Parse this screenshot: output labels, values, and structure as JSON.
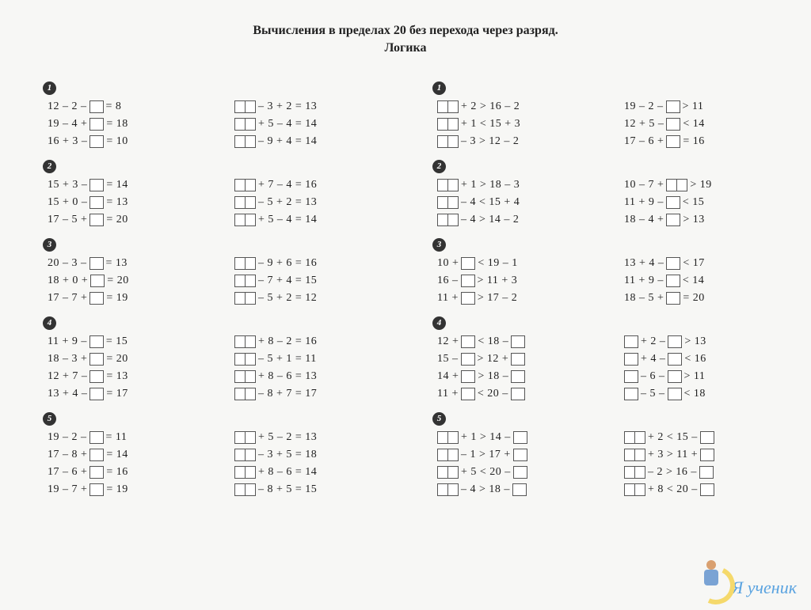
{
  "title_line1": "Вычисления в пределах 20 без перехода через разряд.",
  "title_line2": "Логика",
  "watermark_text": "Я ученик",
  "left": {
    "colA": [
      {
        "n": 1,
        "rows": [
          [
            {
              "t": "12 – 2 –"
            },
            {
              "b": 1
            },
            {
              "t": "= 8"
            }
          ],
          [
            {
              "t": "19 – 4 +"
            },
            {
              "b": 1
            },
            {
              "t": "= 18"
            }
          ],
          [
            {
              "t": "16 + 3 –"
            },
            {
              "b": 1
            },
            {
              "t": "= 10"
            }
          ]
        ]
      },
      {
        "n": 2,
        "rows": [
          [
            {
              "t": "15 + 3 –"
            },
            {
              "b": 1
            },
            {
              "t": "= 14"
            }
          ],
          [
            {
              "t": "15 + 0 –"
            },
            {
              "b": 1
            },
            {
              "t": "= 13"
            }
          ],
          [
            {
              "t": "17 – 5 +"
            },
            {
              "b": 1
            },
            {
              "t": "= 20"
            }
          ]
        ]
      },
      {
        "n": 3,
        "rows": [
          [
            {
              "t": "20 – 3 –"
            },
            {
              "b": 1
            },
            {
              "t": "= 13"
            }
          ],
          [
            {
              "t": "18 + 0 +"
            },
            {
              "b": 1
            },
            {
              "t": "= 20"
            }
          ],
          [
            {
              "t": "17 – 7 +"
            },
            {
              "b": 1
            },
            {
              "t": "= 19"
            }
          ]
        ]
      },
      {
        "n": 4,
        "rows": [
          [
            {
              "t": "11 + 9 –"
            },
            {
              "b": 1
            },
            {
              "t": "= 15"
            }
          ],
          [
            {
              "t": "18 – 3 +"
            },
            {
              "b": 1
            },
            {
              "t": "= 20"
            }
          ],
          [
            {
              "t": "12 + 7 –"
            },
            {
              "b": 1
            },
            {
              "t": "= 13"
            }
          ],
          [
            {
              "t": "13 + 4 –"
            },
            {
              "b": 1
            },
            {
              "t": "= 17"
            }
          ]
        ]
      },
      {
        "n": 5,
        "rows": [
          [
            {
              "t": "19 – 2 –"
            },
            {
              "b": 1
            },
            {
              "t": "= 11"
            }
          ],
          [
            {
              "t": "17 – 8 +"
            },
            {
              "b": 1
            },
            {
              "t": "= 14"
            }
          ],
          [
            {
              "t": "17 – 6 +"
            },
            {
              "b": 1
            },
            {
              "t": "= 16"
            }
          ],
          [
            {
              "t": "19 – 7 +"
            },
            {
              "b": 1
            },
            {
              "t": "= 19"
            }
          ]
        ]
      }
    ],
    "colB": [
      {
        "rows": [
          [
            {
              "b": 2
            },
            {
              "t": "– 3 + 2 = 13"
            }
          ],
          [
            {
              "b": 2
            },
            {
              "t": "+ 5 – 4 = 14"
            }
          ],
          [
            {
              "b": 2
            },
            {
              "t": "– 9 + 4 = 14"
            }
          ]
        ]
      },
      {
        "rows": [
          [
            {
              "b": 2
            },
            {
              "t": "+ 7 – 4 = 16"
            }
          ],
          [
            {
              "b": 2
            },
            {
              "t": "– 5 + 2 = 13"
            }
          ],
          [
            {
              "b": 2
            },
            {
              "t": "+ 5 – 4 = 14"
            }
          ]
        ]
      },
      {
        "rows": [
          [
            {
              "b": 2
            },
            {
              "t": "– 9 + 6 = 16"
            }
          ],
          [
            {
              "b": 2
            },
            {
              "t": "– 7 + 4 = 15"
            }
          ],
          [
            {
              "b": 2
            },
            {
              "t": "– 5 + 2 = 12"
            }
          ]
        ]
      },
      {
        "rows": [
          [
            {
              "b": 2
            },
            {
              "t": "+ 8 – 2 = 16"
            }
          ],
          [
            {
              "b": 2
            },
            {
              "t": "– 5 + 1 = 11"
            }
          ],
          [
            {
              "b": 2
            },
            {
              "t": "+ 8 – 6 = 13"
            }
          ],
          [
            {
              "b": 2
            },
            {
              "t": "– 8 + 7 = 17"
            }
          ]
        ]
      },
      {
        "rows": [
          [
            {
              "b": 2
            },
            {
              "t": "+ 5 – 2 = 13"
            }
          ],
          [
            {
              "b": 2
            },
            {
              "t": "– 3 + 5 = 18"
            }
          ],
          [
            {
              "b": 2
            },
            {
              "t": "+ 8 – 6 = 14"
            }
          ],
          [
            {
              "b": 2
            },
            {
              "t": "– 8 + 5 = 15"
            }
          ]
        ]
      }
    ]
  },
  "right": {
    "colA": [
      {
        "n": 1,
        "rows": [
          [
            {
              "b": 2
            },
            {
              "t": "+ 2 > 16 – 2"
            }
          ],
          [
            {
              "b": 2
            },
            {
              "t": "+ 1 < 15 + 3"
            }
          ],
          [
            {
              "b": 2
            },
            {
              "t": "– 3 > 12 – 2"
            }
          ]
        ]
      },
      {
        "n": 2,
        "rows": [
          [
            {
              "b": 2
            },
            {
              "t": "+ 1 > 18 – 3"
            }
          ],
          [
            {
              "b": 2
            },
            {
              "t": "– 4 < 15 + 4"
            }
          ],
          [
            {
              "b": 2
            },
            {
              "t": "– 4 > 14 – 2"
            }
          ]
        ]
      },
      {
        "n": 3,
        "rows": [
          [
            {
              "t": "10 +"
            },
            {
              "b": 1
            },
            {
              "t": "< 19 – 1"
            }
          ],
          [
            {
              "t": "16 –"
            },
            {
              "b": 1
            },
            {
              "t": "> 11 + 3"
            }
          ],
          [
            {
              "t": "11 +"
            },
            {
              "b": 1
            },
            {
              "t": "> 17 – 2"
            }
          ]
        ]
      },
      {
        "n": 4,
        "rows": [
          [
            {
              "t": "12 +"
            },
            {
              "b": 1
            },
            {
              "t": "< 18 –"
            },
            {
              "b": 1
            }
          ],
          [
            {
              "t": "15 –"
            },
            {
              "b": 1
            },
            {
              "t": "> 12 +"
            },
            {
              "b": 1
            }
          ],
          [
            {
              "t": "14 +"
            },
            {
              "b": 1
            },
            {
              "t": "> 18 –"
            },
            {
              "b": 1
            }
          ],
          [
            {
              "t": "11 +"
            },
            {
              "b": 1
            },
            {
              "t": "< 20 –"
            },
            {
              "b": 1
            }
          ]
        ]
      },
      {
        "n": 5,
        "rows": [
          [
            {
              "b": 2
            },
            {
              "t": "+ 1 > 14 –"
            },
            {
              "b": 1
            }
          ],
          [
            {
              "b": 2
            },
            {
              "t": "– 1 > 17 +"
            },
            {
              "b": 1
            }
          ],
          [
            {
              "b": 2
            },
            {
              "t": "+ 5 < 20 –"
            },
            {
              "b": 1
            }
          ],
          [
            {
              "b": 2
            },
            {
              "t": "– 4 > 18 –"
            },
            {
              "b": 1
            }
          ]
        ]
      }
    ],
    "colB": [
      {
        "rows": [
          [
            {
              "t": "19 – 2 –"
            },
            {
              "b": 1
            },
            {
              "t": "> 11"
            }
          ],
          [
            {
              "t": "12 + 5 –"
            },
            {
              "b": 1
            },
            {
              "t": "< 14"
            }
          ],
          [
            {
              "t": "17 – 6 +"
            },
            {
              "b": 1
            },
            {
              "t": "= 16"
            }
          ]
        ]
      },
      {
        "rows": [
          [
            {
              "t": "10 – 7 +"
            },
            {
              "b": 2
            },
            {
              "t": "> 19"
            }
          ],
          [
            {
              "t": "11 + 9 –"
            },
            {
              "b": 1
            },
            {
              "t": "< 15"
            }
          ],
          [
            {
              "t": "18 – 4 +"
            },
            {
              "b": 1
            },
            {
              "t": "> 13"
            }
          ]
        ]
      },
      {
        "rows": [
          [
            {
              "t": "13 + 4 –"
            },
            {
              "b": 1
            },
            {
              "t": "< 17"
            }
          ],
          [
            {
              "t": "11 + 9 –"
            },
            {
              "b": 1
            },
            {
              "t": "< 14"
            }
          ],
          [
            {
              "t": "18 – 5 +"
            },
            {
              "b": 1
            },
            {
              "t": "= 20"
            }
          ]
        ]
      },
      {
        "rows": [
          [
            {
              "b": 1
            },
            {
              "t": "+ 2 –"
            },
            {
              "b": 1
            },
            {
              "t": "> 13"
            }
          ],
          [
            {
              "b": 1
            },
            {
              "t": "+ 4 –"
            },
            {
              "b": 1
            },
            {
              "t": "< 16"
            }
          ],
          [
            {
              "b": 1
            },
            {
              "t": "– 6 –"
            },
            {
              "b": 1
            },
            {
              "t": "> 11"
            }
          ],
          [
            {
              "b": 1
            },
            {
              "t": "– 5 –"
            },
            {
              "b": 1
            },
            {
              "t": "< 18"
            }
          ]
        ]
      },
      {
        "rows": [
          [
            {
              "b": 2
            },
            {
              "t": "+ 2 < 15 –"
            },
            {
              "b": 1
            }
          ],
          [
            {
              "b": 2
            },
            {
              "t": "+ 3 > 11 +"
            },
            {
              "b": 1
            }
          ],
          [
            {
              "b": 2
            },
            {
              "t": "– 2 > 16 –"
            },
            {
              "b": 1
            }
          ],
          [
            {
              "b": 2
            },
            {
              "t": "+ 8 < 20 –"
            },
            {
              "b": 1
            }
          ]
        ]
      }
    ]
  }
}
